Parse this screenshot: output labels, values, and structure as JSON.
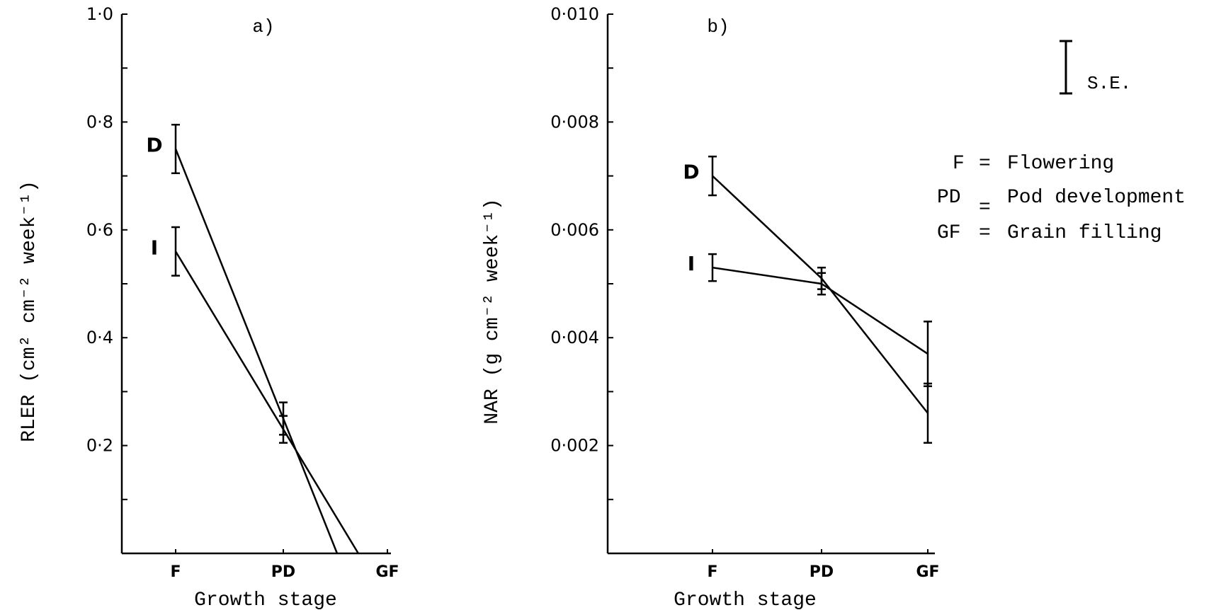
{
  "chart_data": [
    {
      "type": "line",
      "panel_label": "a)",
      "ylabel": "RLER (cm² cm⁻² week⁻¹)",
      "xlabel": "Growth stage",
      "categories": [
        "F",
        "PD",
        "GF"
      ],
      "ylim": [
        0,
        1.0
      ],
      "yticks": [
        0.2,
        0.4,
        0.6,
        0.8,
        1.0
      ],
      "ytick_labels": [
        "0·2",
        "0·4",
        "0·6",
        "0·8",
        "1·0"
      ],
      "series": [
        {
          "name": "D",
          "values": [
            0.75,
            0.25,
            null
          ],
          "se": [
            0.045,
            0.03,
            null
          ],
          "extends_to_zero": true
        },
        {
          "name": "I",
          "values": [
            0.56,
            0.23,
            null
          ],
          "se": [
            0.045,
            0.025,
            null
          ],
          "extends_to_zero": true
        }
      ]
    },
    {
      "type": "line",
      "panel_label": "b)",
      "ylabel": "NAR (g cm⁻² week⁻¹)",
      "xlabel": "Growth stage",
      "categories": [
        "F",
        "PD",
        "GF"
      ],
      "ylim": [
        0,
        0.01
      ],
      "yticks": [
        0.002,
        0.004,
        0.006,
        0.008,
        0.01
      ],
      "ytick_labels": [
        "0·002",
        "0·004",
        "0·006",
        "0·008",
        "0·010"
      ],
      "series": [
        {
          "name": "D",
          "values": [
            0.007,
            0.0051,
            0.0026
          ],
          "se": [
            0.00036,
            0.0002,
            0.00055
          ]
        },
        {
          "name": "I",
          "values": [
            0.0053,
            0.005,
            0.0037
          ],
          "se": [
            0.00025,
            0.0002,
            0.0006
          ]
        }
      ]
    }
  ],
  "legend": {
    "se_label": "S.E.",
    "entries": [
      {
        "abbr": "F",
        "sep": "=",
        "text": "Flowering"
      },
      {
        "abbr": "PD",
        "sep": "=",
        "text": "Pod development"
      },
      {
        "abbr": "GF",
        "sep": "=",
        "text": "Grain filling"
      }
    ]
  }
}
